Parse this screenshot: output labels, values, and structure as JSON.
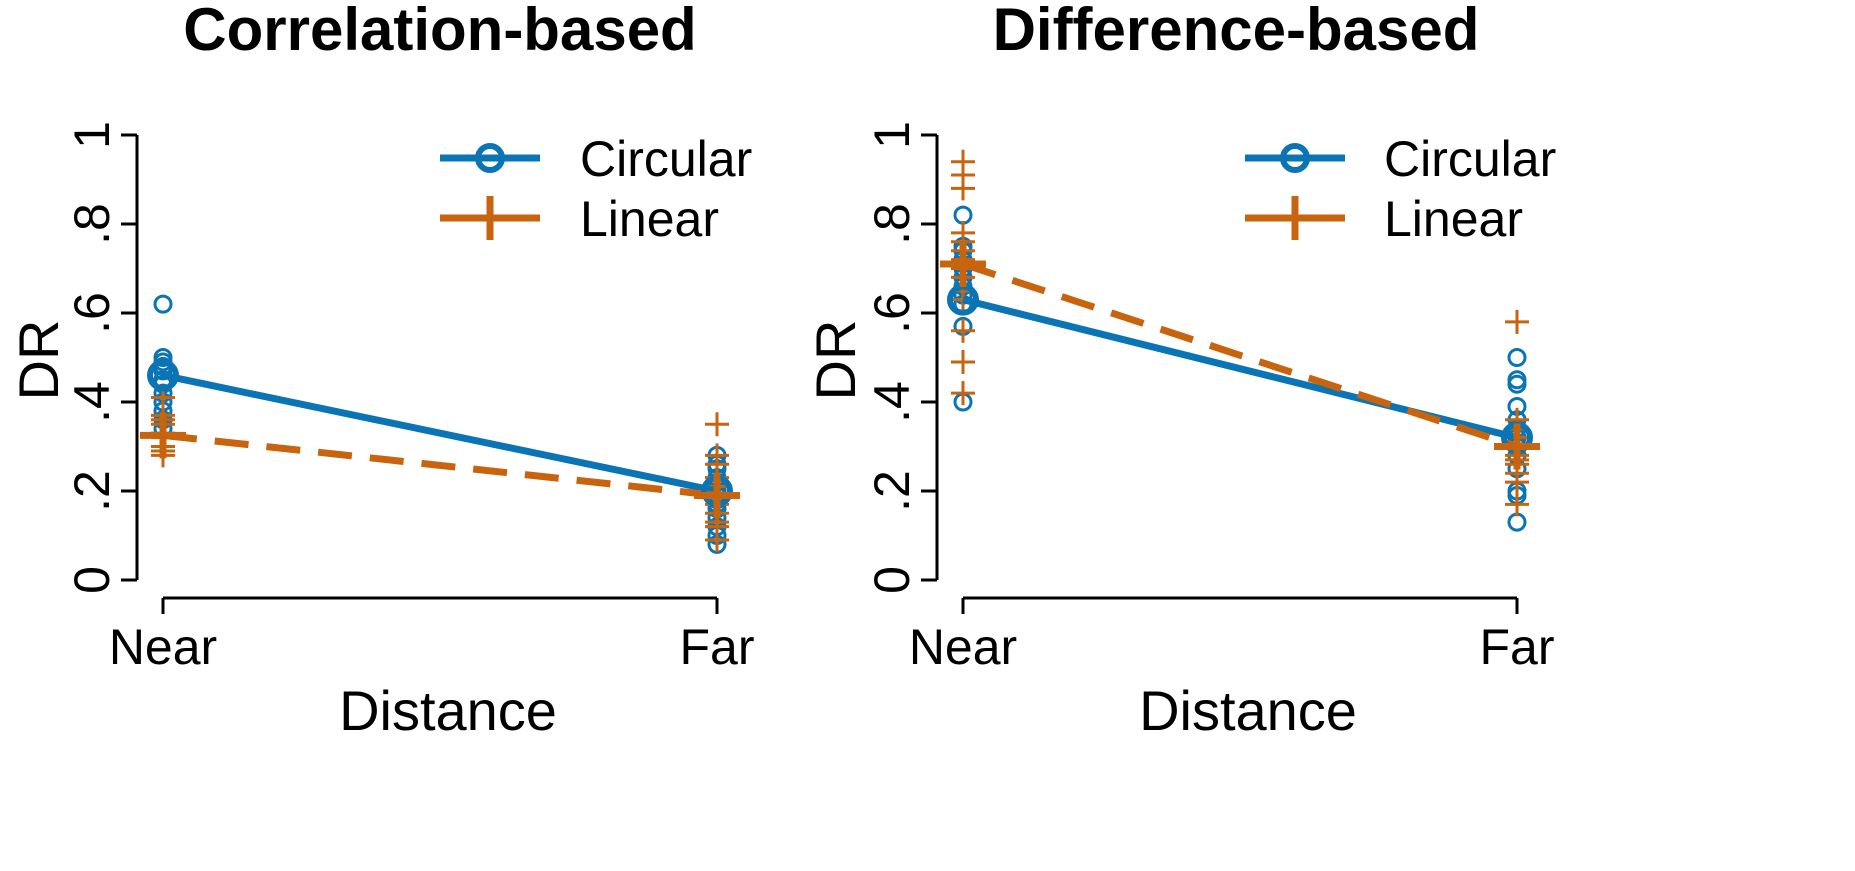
{
  "colors": {
    "circular": "#0a74b4",
    "linear": "#c8630e",
    "axis": "#000000"
  },
  "legend_items": [
    {
      "key": "circular",
      "label": "Circular",
      "marker": "circle-icon"
    },
    {
      "key": "linear",
      "label": "Linear",
      "marker": "plus-icon"
    }
  ],
  "chart_data": [
    {
      "type": "line",
      "title": "Correlation-based",
      "xlabel": "Distance",
      "ylabel": "DR",
      "categories": [
        "Near",
        "Far"
      ],
      "ylim": [
        0,
        1
      ],
      "yticks": [
        0,
        0.2,
        0.4,
        0.6,
        0.8,
        1
      ],
      "ytick_labels": [
        "0",
        ".2",
        ".4",
        ".6",
        ".8",
        "1"
      ],
      "legend_position": "top-right",
      "series": [
        {
          "name": "Circular",
          "key": "circular",
          "style": "solid",
          "means": [
            0.46,
            0.2
          ],
          "points": [
            [
              0.62,
              0.5,
              0.49,
              0.48,
              0.47,
              0.45,
              0.44,
              0.42,
              0.4,
              0.38,
              0.36,
              0.34
            ],
            [
              0.28,
              0.26,
              0.25,
              0.23,
              0.22,
              0.2,
              0.19,
              0.18,
              0.17,
              0.16,
              0.14,
              0.12,
              0.1,
              0.08
            ]
          ]
        },
        {
          "name": "Linear",
          "key": "linear",
          "style": "dashed",
          "means": [
            0.325,
            0.19
          ],
          "points": [
            [
              0.41,
              0.37,
              0.36,
              0.35,
              0.33,
              0.32,
              0.3,
              0.29,
              0.28
            ],
            [
              0.35,
              0.28,
              0.26,
              0.23,
              0.21,
              0.19,
              0.17,
              0.15,
              0.13,
              0.12,
              0.09
            ]
          ]
        }
      ]
    },
    {
      "type": "line",
      "title": "Difference-based",
      "xlabel": "Distance",
      "ylabel": "DR",
      "categories": [
        "Near",
        "Far"
      ],
      "ylim": [
        0,
        1
      ],
      "yticks": [
        0,
        0.2,
        0.4,
        0.6,
        0.8,
        1
      ],
      "ytick_labels": [
        "0",
        ".2",
        ".4",
        ".6",
        ".8",
        "1"
      ],
      "legend_position": "top-right",
      "series": [
        {
          "name": "Circular",
          "key": "circular",
          "style": "solid",
          "means": [
            0.63,
            0.32
          ],
          "points": [
            [
              0.82,
              0.75,
              0.74,
              0.72,
              0.7,
              0.68,
              0.66,
              0.64,
              0.62,
              0.57,
              0.4
            ],
            [
              0.5,
              0.45,
              0.44,
              0.39,
              0.36,
              0.34,
              0.32,
              0.3,
              0.28,
              0.25,
              0.2,
              0.19,
              0.13
            ]
          ]
        },
        {
          "name": "Linear",
          "key": "linear",
          "style": "dashed",
          "means": [
            0.71,
            0.3
          ],
          "points": [
            [
              0.94,
              0.91,
              0.88,
              0.78,
              0.76,
              0.74,
              0.72,
              0.7,
              0.68,
              0.65,
              0.63,
              0.56,
              0.49,
              0.42
            ],
            [
              0.58,
              0.36,
              0.34,
              0.32,
              0.3,
              0.28,
              0.27,
              0.26,
              0.24,
              0.22,
              0.17
            ]
          ]
        }
      ]
    }
  ]
}
